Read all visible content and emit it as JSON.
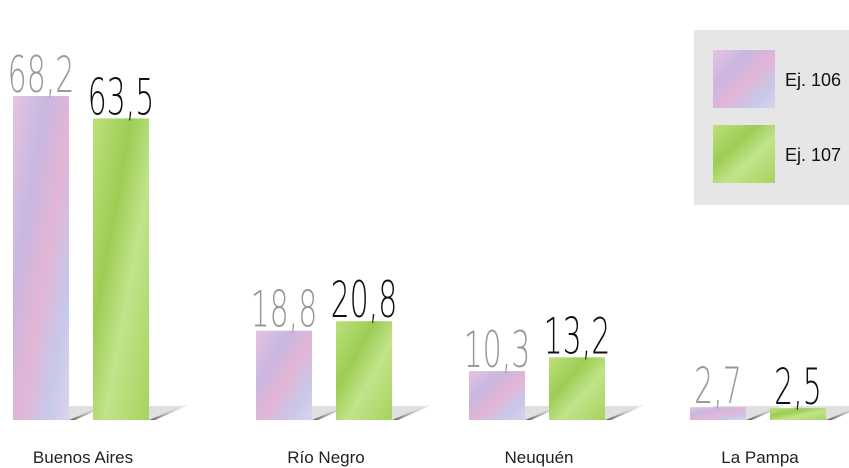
{
  "chart_data": {
    "type": "bar",
    "categories": [
      "Buenos Aires",
      "Río Negro",
      "Neuquén",
      "La Pampa"
    ],
    "series": [
      {
        "name": "Ej. 106",
        "color": "#d9b8dc",
        "values": [
          68.2,
          18.8,
          10.3,
          2.7
        ],
        "value_labels": [
          "68,2",
          "18,8",
          "10,3",
          "2,7"
        ]
      },
      {
        "name": "Ej. 107",
        "color": "#a8d45c",
        "values": [
          63.5,
          20.8,
          13.2,
          2.5
        ],
        "value_labels": [
          "63,5",
          "20,8",
          "13,2",
          "2,5"
        ]
      }
    ],
    "legend": "top-right"
  }
}
